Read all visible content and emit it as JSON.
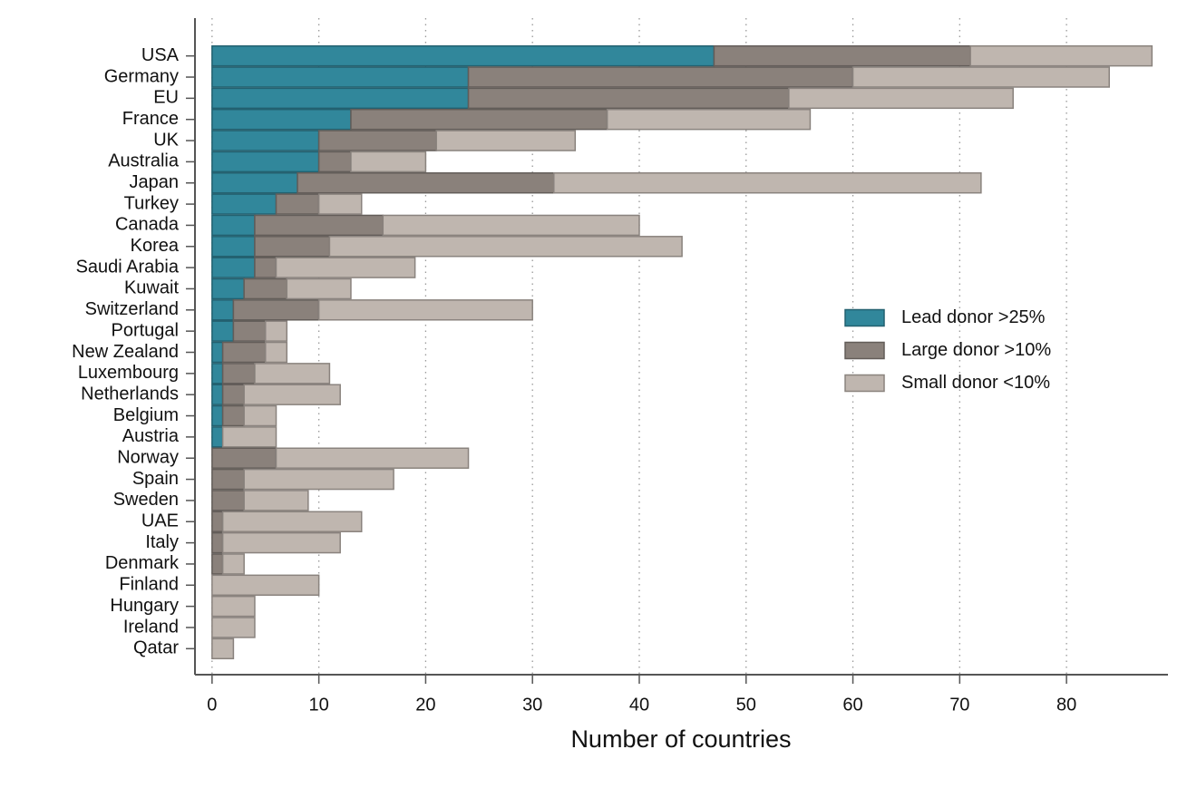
{
  "chart_data": {
    "type": "stacked-barh",
    "x_label": "Number of countries",
    "categories": [
      "USA",
      "Germany",
      "EU",
      "France",
      "UK",
      "Australia",
      "Japan",
      "Turkey",
      "Canada",
      "Korea",
      "Saudi Arabia",
      "Kuwait",
      "Switzerland",
      "Portugal",
      "New Zealand",
      "Luxembourg",
      "Netherlands",
      "Belgium",
      "Austria",
      "Norway",
      "Spain",
      "Sweden",
      "UAE",
      "Italy",
      "Denmark",
      "Finland",
      "Hungary",
      "Ireland",
      "Qatar"
    ],
    "series": [
      {
        "name": "Lead donor >25%",
        "color": "#31879b",
        "values": [
          47,
          24,
          24,
          13,
          10,
          10,
          8,
          6,
          4,
          4,
          4,
          3,
          2,
          2,
          1,
          1,
          1,
          1,
          1,
          0,
          0,
          0,
          0,
          0,
          0,
          0,
          0,
          0,
          0
        ]
      },
      {
        "name": "Large donor >10%",
        "color": "#8a817b",
        "values": [
          24,
          36,
          30,
          24,
          11,
          3,
          24,
          4,
          12,
          7,
          2,
          4,
          8,
          3,
          4,
          3,
          2,
          2,
          0,
          6,
          3,
          3,
          1,
          1,
          1,
          0,
          0,
          0,
          0
        ]
      },
      {
        "name": "Small donor <10%",
        "color": "#bfb6af",
        "values": [
          17,
          24,
          21,
          19,
          13,
          7,
          40,
          4,
          24,
          33,
          13,
          6,
          20,
          2,
          2,
          7,
          9,
          3,
          5,
          18,
          14,
          6,
          13,
          11,
          2,
          10,
          4,
          4,
          2
        ]
      }
    ],
    "xlim": [
      -1.6,
      89.5
    ],
    "xticks": [
      0,
      10,
      20,
      30,
      40,
      50,
      60,
      70,
      80
    ],
    "grid": true,
    "legend": "center right"
  }
}
